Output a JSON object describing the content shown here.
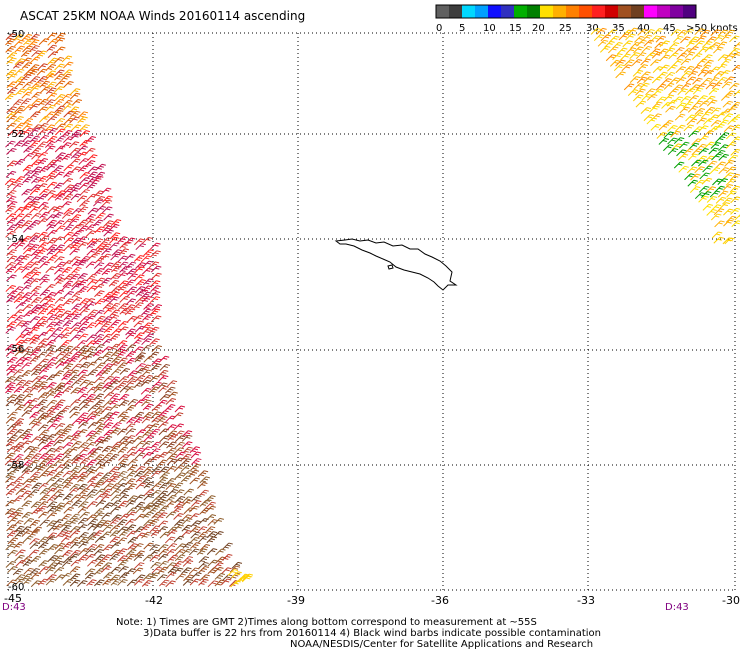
{
  "title": "ASCAT 25KM NOAA Winds 20160114 ascending",
  "legend": {
    "colors": [
      "#606060",
      "#3d3d3d",
      "#00d8ff",
      "#00a0ff",
      "#1010ff",
      "#3030c0",
      "#00b000",
      "#008000",
      "#ffe000",
      "#ffb000",
      "#ff8000",
      "#ff5000",
      "#ff2020",
      "#d00000",
      "#a05020",
      "#704020",
      "#ff00ff",
      "#c000c0",
      "#8000a0",
      "#500080"
    ],
    "ticks": [
      "0",
      "5",
      "10",
      "15",
      "20",
      "25",
      "30",
      "35",
      "40",
      "45",
      ">50 knots"
    ]
  },
  "lat_labels": [
    "-50",
    "-52",
    "-54",
    "-56",
    "-58",
    "-60"
  ],
  "lon_labels": [
    "-45",
    "-42",
    "-39",
    "-36",
    "-33",
    "-30"
  ],
  "time_labels": [
    "D:43",
    "D:43"
  ],
  "notes": [
    "Note: 1) Times are GMT 2)Times along bottom correspond to measurement at ~55S",
    "3)Data buffer is 22 hrs from 20160114 4) Black wind barbs indicate possible contamination",
    "NOAA/NESDIS/Center for Satellite Applications and Research"
  ],
  "feature_names": [
    "South Georgia island coastline",
    "ASCAT wind barbs swath (left)",
    "ASCAT wind barbs swath (right)"
  ]
}
